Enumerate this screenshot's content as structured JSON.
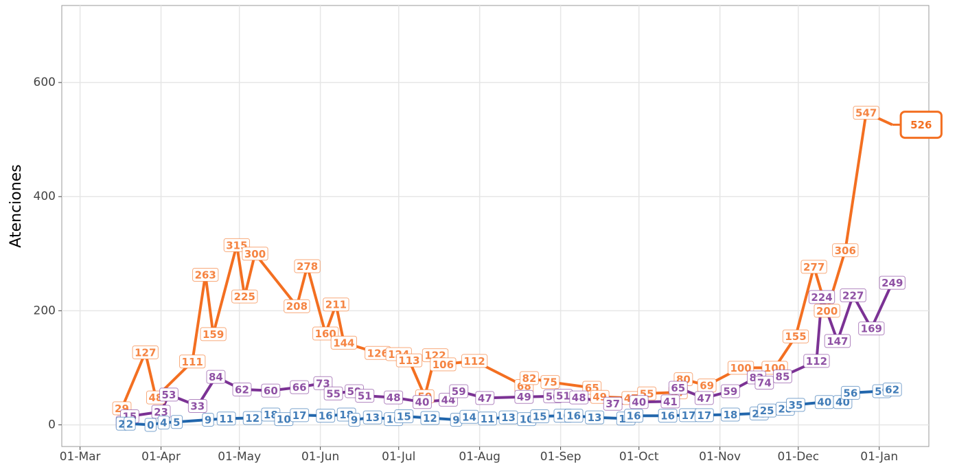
{
  "chart_data": {
    "type": "line",
    "y_label": "Atenciones",
    "xlim": [
      "22-Feb",
      "20-Jan"
    ],
    "xticks": [
      "01-Mar",
      "01-Apr",
      "01-May",
      "01-Jun",
      "01-Jul",
      "01-Aug",
      "01-Sep",
      "01-Oct",
      "01-Nov",
      "01-Dec",
      "01-Jan"
    ],
    "ylim": [
      -38,
      735
    ],
    "yticks": [
      0,
      200,
      400,
      600
    ],
    "grid": true,
    "series": [
      {
        "color": "#f36f21",
        "x": [
          "17-Mar",
          "26-Mar",
          "30-Mar",
          "13-Apr",
          "18-Apr",
          "21-Apr",
          "30-Apr",
          "03-May",
          "07-May",
          "23-May",
          "27-May",
          "03-Jun",
          "07-Jun",
          "10-Jun",
          "23-Jun",
          "01-Jul",
          "05-Jul",
          "11-Jul",
          "15-Jul",
          "18-Jul",
          "30-Jul",
          "18-Aug",
          "20-Aug",
          "28-Aug",
          "13-Sep",
          "16-Sep",
          "28-Sep",
          "04-Oct",
          "16-Oct",
          "18-Oct",
          "27-Oct",
          "09-Nov",
          "22-Nov",
          "30-Nov",
          "07-Dec",
          "12-Dec",
          "19-Dec",
          "27-Dec",
          "06-Jan"
        ],
        "values": [
          29,
          127,
          48,
          111,
          263,
          159,
          315,
          225,
          300,
          208,
          278,
          160,
          211,
          144,
          126,
          124,
          113,
          50,
          122,
          106,
          112,
          68,
          82,
          75,
          65,
          49,
          47,
          55,
          57,
          80,
          69,
          100,
          100,
          155,
          277,
          200,
          306,
          547,
          526
        ]
      },
      {
        "color": "#7b3294",
        "x": [
          "17-Mar",
          "20-Mar",
          "01-Apr",
          "04-Apr",
          "15-Apr",
          "22-Apr",
          "02-May",
          "13-May",
          "24-May",
          "02-Jun",
          "06-Jun",
          "14-Jun",
          "18-Jun",
          "29-Jun",
          "10-Jul",
          "20-Jul",
          "24-Jul",
          "03-Aug",
          "18-Aug",
          "29-Aug",
          "02-Sep",
          "08-Sep",
          "21-Sep",
          "01-Oct",
          "13-Oct",
          "16-Oct",
          "26-Oct",
          "05-Nov",
          "15-Nov",
          "18-Nov",
          "25-Nov",
          "08-Dec",
          "10-Dec",
          "16-Dec",
          "22-Dec",
          "29-Dec",
          "06-Jan"
        ],
        "values": [
          4,
          15,
          23,
          53,
          33,
          84,
          62,
          60,
          66,
          73,
          55,
          59,
          51,
          48,
          40,
          44,
          59,
          47,
          49,
          50,
          51,
          48,
          37,
          40,
          41,
          65,
          47,
          59,
          83,
          74,
          85,
          112,
          224,
          147,
          227,
          169,
          249
        ]
      },
      {
        "color": "#2166ac",
        "x": [
          "17-Mar",
          "20-Mar",
          "28-Mar",
          "02-Apr",
          "07-Apr",
          "19-Apr",
          "26-Apr",
          "06-May",
          "13-May",
          "18-May",
          "24-May",
          "03-Jun",
          "11-Jun",
          "14-Jun",
          "21-Jun",
          "29-Jun",
          "03-Jul",
          "13-Jul",
          "23-Jul",
          "28-Jul",
          "04-Aug",
          "12-Aug",
          "19-Aug",
          "24-Aug",
          "02-Sep",
          "06-Sep",
          "14-Sep",
          "26-Sep",
          "29-Sep",
          "12-Oct",
          "20-Oct",
          "26-Oct",
          "05-Nov",
          "16-Nov",
          "19-Nov",
          "26-Nov",
          "30-Nov",
          "11-Dec",
          "18-Dec",
          "21-Dec",
          "02-Jan",
          "06-Jan"
        ],
        "values": [
          2,
          2,
          0,
          4,
          5,
          9,
          11,
          12,
          18,
          10,
          17,
          16,
          18,
          9,
          13,
          10,
          15,
          12,
          9,
          14,
          11,
          13,
          10,
          15,
          16,
          16,
          13,
          11,
          16,
          16,
          17,
          17,
          18,
          20,
          25,
          28,
          35,
          40,
          40,
          56,
          59,
          62
        ]
      }
    ]
  }
}
